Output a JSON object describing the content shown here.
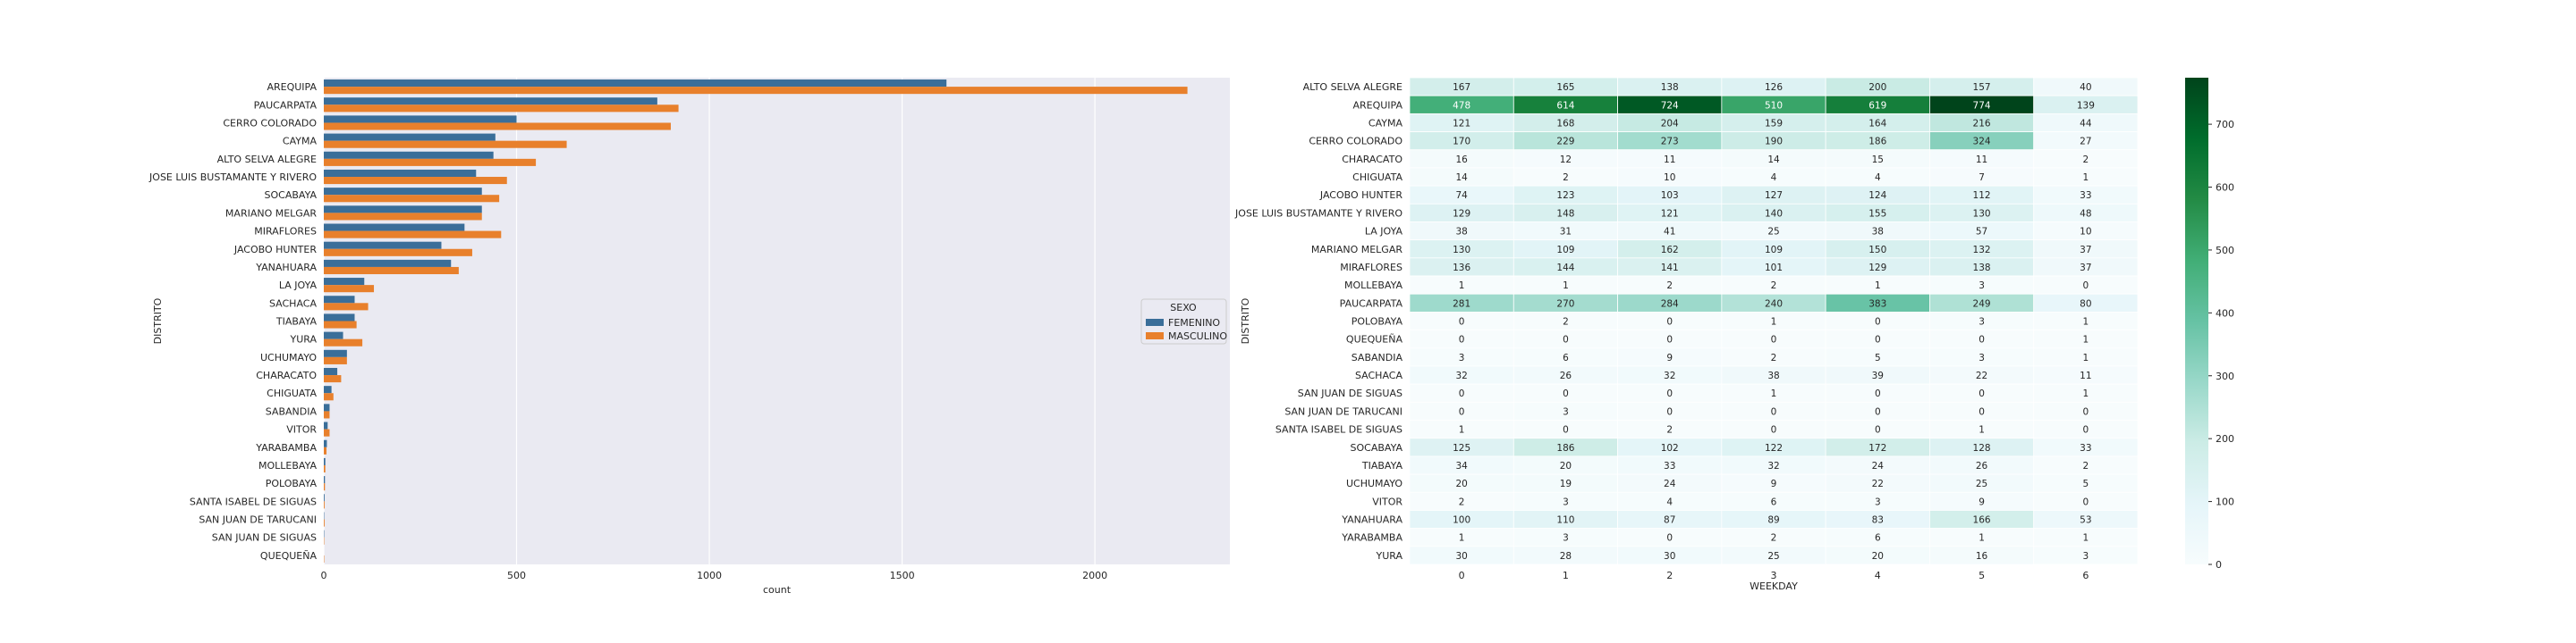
{
  "chart_data": [
    {
      "type": "bar",
      "orientation": "horizontal",
      "title": "",
      "xlabel": "count",
      "ylabel": "DISTRITO",
      "xlim": [
        0,
        2350
      ],
      "x_ticks": [
        "0",
        "500",
        "1000",
        "1500",
        "2000"
      ],
      "grid": true,
      "legend": {
        "title": "SEXO",
        "placement": "center-right"
      },
      "categories": [
        "AREQUIPA",
        "PAUCARPATA",
        "CERRO COLORADO",
        "CAYMA",
        "ALTO SELVA ALEGRE",
        "JOSE LUIS BUSTAMANTE Y RIVERO",
        "SOCABAYA",
        "MARIANO MELGAR",
        "MIRAFLORES",
        "JACOBO HUNTER",
        "YANAHUARA",
        "LA JOYA",
        "SACHACA",
        "TIABAYA",
        "YURA",
        "UCHUMAYO",
        "CHARACATO",
        "CHIGUATA",
        "SABANDIA",
        "VITOR",
        "YARABAMBA",
        "MOLLEBAYA",
        "POLOBAYA",
        "SANTA ISABEL DE SIGUAS",
        "SAN JUAN DE TARUCANI",
        "SAN JUAN DE SIGUAS",
        "QUEQUEÑA"
      ],
      "series": [
        {
          "name": "FEMENINO",
          "color": "#3a6e99",
          "values": [
            1615,
            865,
            500,
            445,
            440,
            395,
            410,
            410,
            365,
            305,
            330,
            105,
            80,
            80,
            50,
            60,
            35,
            20,
            15,
            10,
            8,
            4,
            3,
            2,
            1,
            1,
            0
          ]
        },
        {
          "name": "MASCULINO",
          "color": "#e8802c",
          "values": [
            2240,
            920,
            900,
            630,
            550,
            475,
            455,
            410,
            460,
            385,
            350,
            130,
            115,
            85,
            100,
            60,
            45,
            25,
            15,
            15,
            7,
            4,
            3,
            2,
            2,
            1,
            1
          ]
        }
      ]
    },
    {
      "type": "heatmap",
      "title": "",
      "xlabel": "WEEKDAY",
      "ylabel": "DISTRITO",
      "x": [
        "0",
        "1",
        "2",
        "3",
        "4",
        "5",
        "6"
      ],
      "colorbar_ticks": [
        "0",
        "100",
        "200",
        "300",
        "400",
        "500",
        "600",
        "700"
      ],
      "vmin": 0,
      "vmax": 774,
      "colormap": "BuGn",
      "rows": [
        {
          "label": "ALTO SELVA ALEGRE",
          "values": [
            167,
            165,
            138,
            126,
            200,
            157,
            40
          ]
        },
        {
          "label": "AREQUIPA",
          "values": [
            478,
            614,
            724,
            510,
            619,
            774,
            139
          ]
        },
        {
          "label": "CAYMA",
          "values": [
            121,
            168,
            204,
            159,
            164,
            216,
            44
          ]
        },
        {
          "label": "CERRO COLORADO",
          "values": [
            170,
            229,
            273,
            190,
            186,
            324,
            27
          ]
        },
        {
          "label": "CHARACATO",
          "values": [
            16,
            12,
            11,
            14,
            15,
            11,
            2
          ]
        },
        {
          "label": "CHIGUATA",
          "values": [
            14,
            2,
            10,
            4,
            4,
            7,
            1
          ]
        },
        {
          "label": "JACOBO HUNTER",
          "values": [
            74,
            123,
            103,
            127,
            124,
            112,
            33
          ]
        },
        {
          "label": "JOSE LUIS BUSTAMANTE Y RIVERO",
          "values": [
            129,
            148,
            121,
            140,
            155,
            130,
            48
          ]
        },
        {
          "label": "LA JOYA",
          "values": [
            38,
            31,
            41,
            25,
            38,
            57,
            10
          ]
        },
        {
          "label": "MARIANO MELGAR",
          "values": [
            130,
            109,
            162,
            109,
            150,
            132,
            37
          ]
        },
        {
          "label": "MIRAFLORES",
          "values": [
            136,
            144,
            141,
            101,
            129,
            138,
            37
          ]
        },
        {
          "label": "MOLLEBAYA",
          "values": [
            1,
            1,
            2,
            2,
            1,
            3,
            0
          ]
        },
        {
          "label": "PAUCARPATA",
          "values": [
            281,
            270,
            284,
            240,
            383,
            249,
            80
          ]
        },
        {
          "label": "POLOBAYA",
          "values": [
            0,
            2,
            0,
            1,
            0,
            3,
            1
          ]
        },
        {
          "label": "QUEQUEÑA",
          "values": [
            0,
            0,
            0,
            0,
            0,
            0,
            1
          ]
        },
        {
          "label": "SABANDIA",
          "values": [
            3,
            6,
            9,
            2,
            5,
            3,
            1
          ]
        },
        {
          "label": "SACHACA",
          "values": [
            32,
            26,
            32,
            38,
            39,
            22,
            11
          ]
        },
        {
          "label": "SAN JUAN DE SIGUAS",
          "values": [
            0,
            0,
            0,
            1,
            0,
            0,
            1
          ]
        },
        {
          "label": "SAN JUAN DE TARUCANI",
          "values": [
            0,
            3,
            0,
            0,
            0,
            0,
            0
          ]
        },
        {
          "label": "SANTA ISABEL DE SIGUAS",
          "values": [
            1,
            0,
            2,
            0,
            0,
            1,
            0
          ]
        },
        {
          "label": "SOCABAYA",
          "values": [
            125,
            186,
            102,
            122,
            172,
            128,
            33
          ]
        },
        {
          "label": "TIABAYA",
          "values": [
            34,
            20,
            33,
            32,
            24,
            26,
            2
          ]
        },
        {
          "label": "UCHUMAYO",
          "values": [
            20,
            19,
            24,
            9,
            22,
            25,
            5
          ]
        },
        {
          "label": "VITOR",
          "values": [
            2,
            3,
            4,
            6,
            3,
            9,
            0
          ]
        },
        {
          "label": "YANAHUARA",
          "values": [
            100,
            110,
            87,
            89,
            83,
            166,
            53
          ]
        },
        {
          "label": "YARABAMBA",
          "values": [
            1,
            3,
            0,
            2,
            6,
            1,
            1
          ]
        },
        {
          "label": "YURA",
          "values": [
            30,
            28,
            30,
            25,
            20,
            16,
            3
          ]
        }
      ]
    }
  ]
}
